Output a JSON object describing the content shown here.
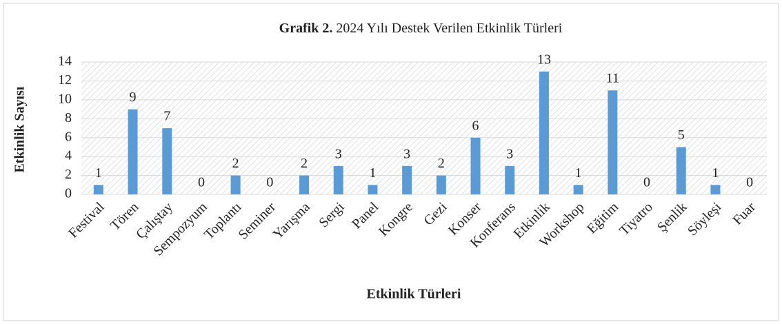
{
  "chart_data": {
    "type": "bar",
    "title_prefix": "Grafik 2.",
    "title": "2024 Yılı Destek Verilen Etkinlik Türleri",
    "x_label": "Etkinlik Türleri",
    "y_label": "Etkinlik Sayısı",
    "categories": [
      "Festival",
      "Tören",
      "Çalıştay",
      "Sempozyum",
      "Toplantı",
      "Seminer",
      "Yarışma",
      "Sergi",
      "Panel",
      "Kongre",
      "Gezi",
      "Konser",
      "Konferans",
      "Etkinlik",
      "Workshop",
      "Eğitim",
      "Tiyatro",
      "Şenlik",
      "Söyleşi",
      "Fuar"
    ],
    "values": [
      1,
      9,
      7,
      0,
      2,
      0,
      2,
      3,
      1,
      3,
      2,
      6,
      3,
      13,
      1,
      11,
      0,
      5,
      1,
      0
    ],
    "color": "#5b9bd5",
    "ylim": [
      0,
      14
    ],
    "yticks": [
      0,
      2,
      4,
      6,
      8,
      10,
      12,
      14
    ],
    "grid": true
  }
}
